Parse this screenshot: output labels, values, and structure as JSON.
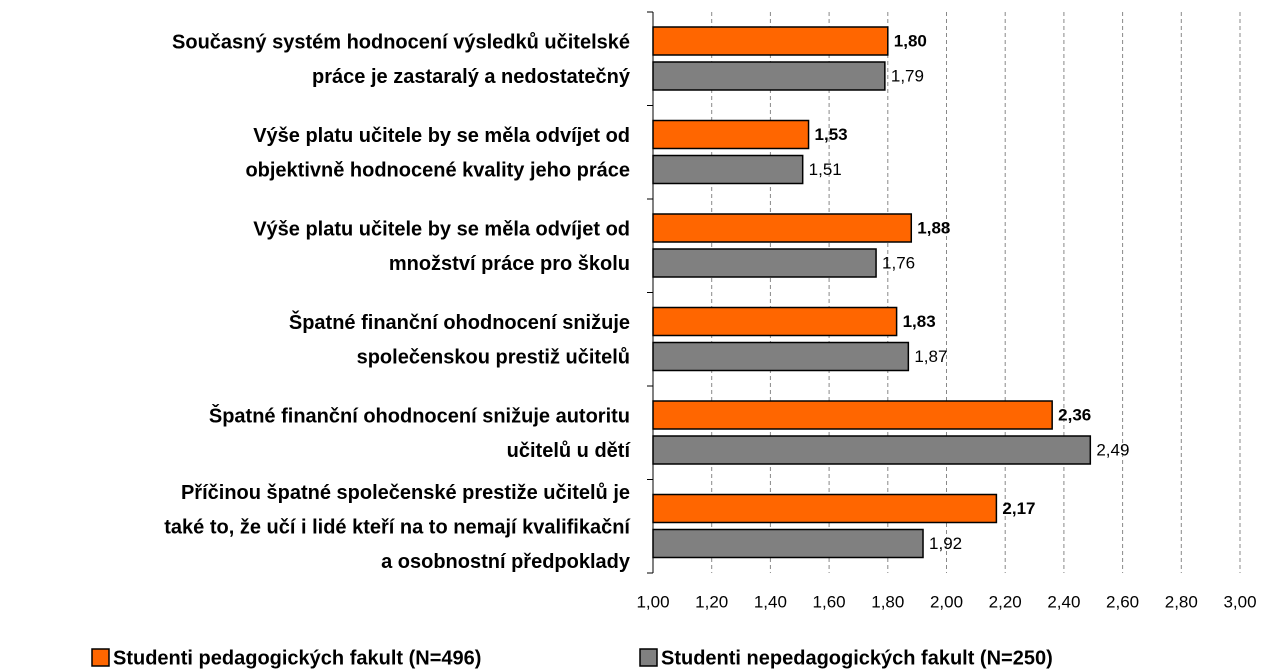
{
  "chart_data": {
    "type": "barh",
    "categories": [
      "Současný systém hodnocení výsledků učitelské\npráce je zastaralý a nedostatečný",
      "Výše platu učitele by se měla odvíjet od\nobjektivně hodnocené kvality jeho práce",
      "Výše platu učitele by se měla odvíjet od\nmnožství práce pro školu",
      "Špatné finanční ohodnocení snižuje\nspolečenskou prestiž učitelů",
      "Špatné finanční ohodnocení snižuje autoritu\nučitelů u dětí",
      "Příčinou špatné společenské prestiže učitelů je\ntaké to, že učí i lidé kteří na to nemají kvalifikační\na osobnostní předpoklady"
    ],
    "series": [
      {
        "name": "Studenti pedagogických fakult (N=496)",
        "color": "#ff6600",
        "values": [
          1.8,
          1.53,
          1.88,
          1.83,
          2.36,
          2.17
        ],
        "value_labels": [
          "1,80",
          "1,53",
          "1,88",
          "1,83",
          "2,36",
          "2,17"
        ]
      },
      {
        "name": "Studenti nepedagogických fakult (N=250)",
        "color": "#808080",
        "values": [
          1.79,
          1.51,
          1.76,
          1.87,
          2.49,
          1.92
        ],
        "value_labels": [
          "1,79",
          "1,51",
          "1,76",
          "1,87",
          "2,49",
          "1,92"
        ]
      }
    ],
    "xlim": [
      1,
      3
    ],
    "xticks": [
      {
        "value": 1,
        "label": "1,00"
      },
      {
        "value": 1.2,
        "label": "1,20"
      },
      {
        "value": 1.4,
        "label": "1,40"
      },
      {
        "value": 1.6,
        "label": "1,60"
      },
      {
        "value": 1.8,
        "label": "1,80"
      },
      {
        "value": 2,
        "label": "2,00"
      },
      {
        "value": 2.2,
        "label": "2,20"
      },
      {
        "value": 2.4,
        "label": "2,40"
      },
      {
        "value": 2.6,
        "label": "2,60"
      },
      {
        "value": 2.8,
        "label": "2,80"
      },
      {
        "value": 3,
        "label": "3,00"
      }
    ],
    "grid": true,
    "legend": "bottom"
  }
}
